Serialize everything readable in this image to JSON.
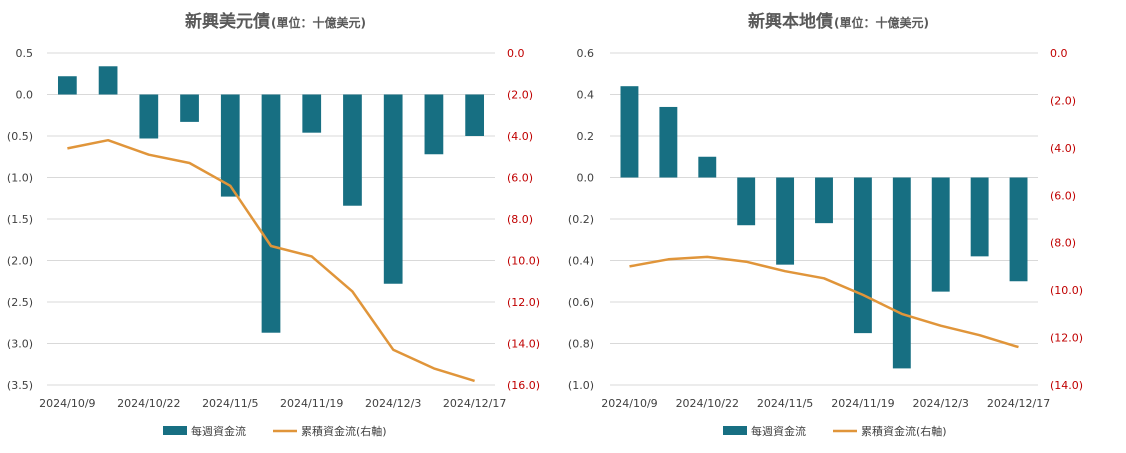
{
  "colors": {
    "bar": "#176f82",
    "line": "#e0953a",
    "negative_tick": "#c00000",
    "grid": "#d9d9d9"
  },
  "legend": {
    "bar_label": "每週資金流",
    "line_label": "累積資金流(右軸)"
  },
  "chart_data": [
    {
      "type": "bar+line",
      "title": "新興美元債",
      "subtitle": "(單位：十億美元)",
      "x_tick_labels": [
        "2024/10/9",
        "2024/10/22",
        "2024/11/5",
        "2024/11/19",
        "2024/12/3",
        "2024/12/17"
      ],
      "left_axis": {
        "ylim": [
          -3.5,
          0.5
        ],
        "tick_values": [
          0.5,
          0.0,
          -0.5,
          -1.0,
          -1.5,
          -2.0,
          -2.5,
          -3.0,
          -3.5
        ],
        "tick_labels": [
          "0.5",
          "0.0",
          "(0.5)",
          "(1.0)",
          "(1.5)",
          "(2.0)",
          "(2.5)",
          "(3.0)",
          "(3.5)"
        ]
      },
      "right_axis": {
        "ylim": [
          -16.0,
          0.0
        ],
        "tick_values": [
          0.0,
          -2.0,
          -4.0,
          -6.0,
          -8.0,
          -10.0,
          -12.0,
          -14.0,
          -16.0
        ],
        "tick_labels": [
          "0.0",
          "(2.0)",
          "(4.0)",
          "(6.0)",
          "(8.0)",
          "(10.0)",
          "(12.0)",
          "(14.0)",
          "(16.0)"
        ]
      },
      "series": [
        {
          "name": "每週資金流",
          "type": "bar",
          "axis": "left",
          "values": [
            0.22,
            0.34,
            -0.53,
            -0.33,
            -1.23,
            -2.87,
            -0.46,
            -1.34,
            -2.28,
            -0.72,
            -0.5
          ]
        },
        {
          "name": "累積資金流(右軸)",
          "type": "line",
          "axis": "right",
          "values": [
            -4.6,
            -4.2,
            -4.9,
            -5.3,
            -6.4,
            -9.3,
            -9.8,
            -11.5,
            -14.3,
            -15.2,
            -15.8
          ]
        }
      ]
    },
    {
      "type": "bar+line",
      "title": "新興本地債",
      "subtitle": "(單位：十億美元)",
      "x_tick_labels": [
        "2024/10/9",
        "2024/10/22",
        "2024/11/5",
        "2024/11/19",
        "2024/12/3",
        "2024/12/17"
      ],
      "left_axis": {
        "ylim": [
          -1.0,
          0.6
        ],
        "tick_values": [
          0.6,
          0.4,
          0.2,
          0.0,
          -0.2,
          -0.4,
          -0.6,
          -0.8,
          -1.0
        ],
        "tick_labels": [
          "0.6",
          "0.4",
          "0.2",
          "0.0",
          "(0.2)",
          "(0.4)",
          "(0.6)",
          "(0.8)",
          "(1.0)"
        ]
      },
      "right_axis": {
        "ylim": [
          -14.0,
          0.0
        ],
        "tick_values": [
          0.0,
          -2.0,
          -4.0,
          -6.0,
          -8.0,
          -10.0,
          -12.0,
          -14.0
        ],
        "tick_labels": [
          "0.0",
          "(2.0)",
          "(4.0)",
          "(6.0)",
          "(8.0)",
          "(10.0)",
          "(12.0)",
          "(14.0)"
        ]
      },
      "series": [
        {
          "name": "每週資金流",
          "type": "bar",
          "axis": "left",
          "values": [
            0.44,
            0.34,
            0.1,
            -0.23,
            -0.42,
            -0.22,
            -0.75,
            -0.92,
            -0.55,
            -0.38,
            -0.5
          ]
        },
        {
          "name": "累積資金流(右軸)",
          "type": "line",
          "axis": "right",
          "values": [
            -9.0,
            -8.7,
            -8.6,
            -8.8,
            -9.2,
            -9.5,
            -10.2,
            -11.0,
            -11.5,
            -11.9,
            -12.4
          ]
        }
      ]
    }
  ]
}
